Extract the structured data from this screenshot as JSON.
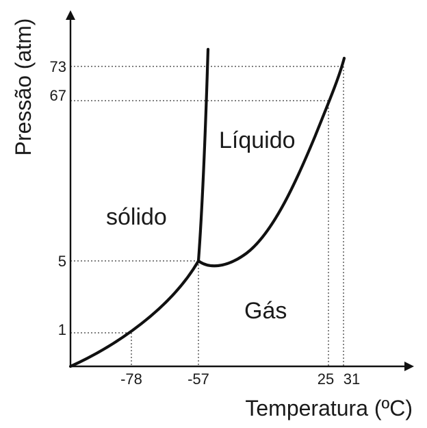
{
  "diagram": {
    "y_axis_label": "Pressão (atm)",
    "x_axis_label": "Temperatura (ºC)",
    "y_ticks": [
      "73",
      "67",
      "5",
      "1"
    ],
    "x_ticks": [
      "-78",
      "-57",
      "25",
      "31"
    ],
    "regions": {
      "solid": "sólido",
      "liquid": "Líquido",
      "gas": "Gás"
    },
    "line_color": "#111111",
    "background": "#ffffff"
  }
}
